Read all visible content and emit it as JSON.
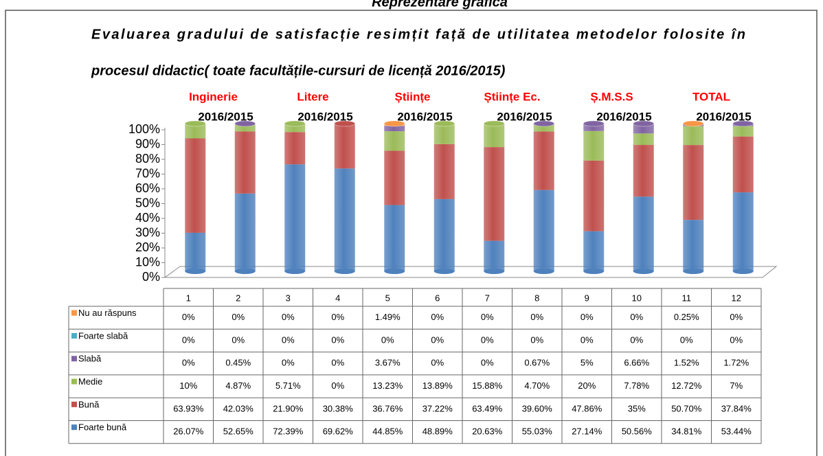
{
  "chart_data": {
    "type": "stacked_bar",
    "header": "Reprezentare grafică",
    "title_lines": [
      "Evaluarea gradului de satisfacție resimțit față de utilitatea metodelor folosite în",
      "procesul didactic( toate facultățile-cursuri de licență 2016/2015)"
    ],
    "groups": [
      {
        "name": "Inginerie",
        "period": "2016/2015"
      },
      {
        "name": "Litere",
        "period": "2016/2015"
      },
      {
        "name": "Științe",
        "period": "2016/2015"
      },
      {
        "name": "Științe Ec.",
        "period": "2016/2015"
      },
      {
        "name": "Ș.M.S.S",
        "period": "2016/2015"
      },
      {
        "name": "TOTAL",
        "period": "2016/2015"
      }
    ],
    "categories": [
      "1",
      "2",
      "3",
      "4",
      "5",
      "6",
      "7",
      "8",
      "9",
      "10",
      "11",
      "12"
    ],
    "series": [
      {
        "name": "Nu au răspuns",
        "color": "#f79646",
        "values": [
          0,
          0,
          0,
          0,
          1.49,
          0,
          0,
          0,
          0,
          0,
          0.25,
          0
        ],
        "value_labels": [
          "0%",
          "0%",
          "0%",
          "0%",
          "1.49%",
          "0%",
          "0%",
          "0%",
          "0%",
          "0%",
          "0.25%",
          "0%"
        ]
      },
      {
        "name": "Foarte slabă",
        "color": "#4bacc6",
        "values": [
          0,
          0,
          0,
          0,
          0,
          0,
          0,
          0,
          0,
          0,
          0,
          0
        ],
        "value_labels": [
          "0%",
          "0%",
          "0%",
          "0%",
          "0%",
          "0%",
          "0%",
          "0%",
          "0%",
          "0%",
          "0%",
          "0%"
        ]
      },
      {
        "name": "Slabă",
        "color": "#8064a2",
        "values": [
          0,
          0.45,
          0,
          0,
          3.67,
          0,
          0,
          0.67,
          5,
          6.66,
          1.52,
          1.72
        ],
        "value_labels": [
          "0%",
          "0.45%",
          "0%",
          "0%",
          "3.67%",
          "0%",
          "0%",
          "0.67%",
          "5%",
          "6.66%",
          "1.52%",
          "1.72%"
        ]
      },
      {
        "name": "Medie",
        "color": "#9bbb59",
        "values": [
          10,
          4.87,
          5.71,
          0,
          13.23,
          13.89,
          15.88,
          4.7,
          20,
          7.78,
          12.72,
          7
        ],
        "value_labels": [
          "10%",
          "4.87%",
          "5.71%",
          "0%",
          "13.23%",
          "13.89%",
          "15.88%",
          "4.70%",
          "20%",
          "7.78%",
          "12.72%",
          "7%"
        ]
      },
      {
        "name": "Bună",
        "color": "#c0504d",
        "values": [
          63.93,
          42.03,
          21.9,
          30.38,
          36.76,
          37.22,
          63.49,
          39.6,
          47.86,
          35,
          50.7,
          37.84
        ],
        "value_labels": [
          "63.93%",
          "42.03%",
          "21.90%",
          "30.38%",
          "36.76%",
          "37.22%",
          "63.49%",
          "39.60%",
          "47.86%",
          "35%",
          "50.70%",
          "37.84%"
        ]
      },
      {
        "name": "Foarte bună",
        "color": "#4f81bd",
        "values": [
          26.07,
          52.65,
          72.39,
          69.62,
          44.85,
          48.89,
          20.63,
          55.03,
          27.14,
          50.56,
          34.81,
          53.44
        ],
        "value_labels": [
          "26.07%",
          "52.65%",
          "72.39%",
          "69.62%",
          "44.85%",
          "48.89%",
          "20.63%",
          "55.03%",
          "27.14%",
          "50.56%",
          "34.81%",
          "53.44%"
        ]
      }
    ],
    "ylim": [
      0,
      100
    ],
    "yticks": [
      {
        "value": 0,
        "label": "0%"
      },
      {
        "value": 10,
        "label": "10%"
      },
      {
        "value": 20,
        "label": "20%"
      },
      {
        "value": 30,
        "label": "30%"
      },
      {
        "value": 40,
        "label": "40%"
      },
      {
        "value": 50,
        "label": "50%"
      },
      {
        "value": 60,
        "label": "60%"
      },
      {
        "value": 70,
        "label": "70%"
      },
      {
        "value": 80,
        "label": "80%"
      },
      {
        "value": 90,
        "label": "90%"
      },
      {
        "value": 100,
        "label": "100%"
      }
    ]
  }
}
